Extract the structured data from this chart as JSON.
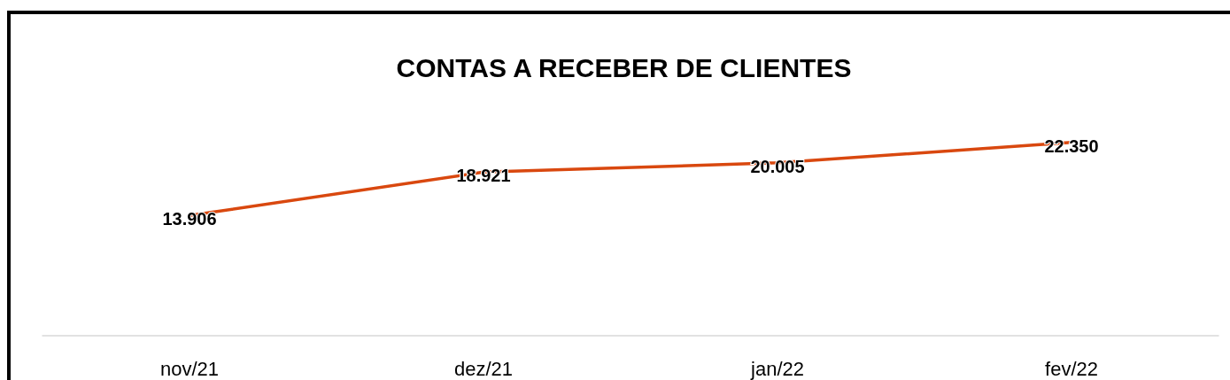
{
  "chart_data": {
    "type": "line",
    "title": "CONTAS A RECEBER DE CLIENTES",
    "categories": [
      "nov/21",
      "dez/21",
      "jan/22",
      "fev/22"
    ],
    "series": [
      {
        "color": "#d9480f",
        "values": [
          13906,
          18921,
          20005,
          22350
        ],
        "value_labels": [
          "13.906",
          "18.921",
          "20.005",
          "22.350"
        ]
      }
    ],
    "tick_labels": "x",
    "grid": false,
    "marker": "none",
    "line_style": "solid"
  }
}
